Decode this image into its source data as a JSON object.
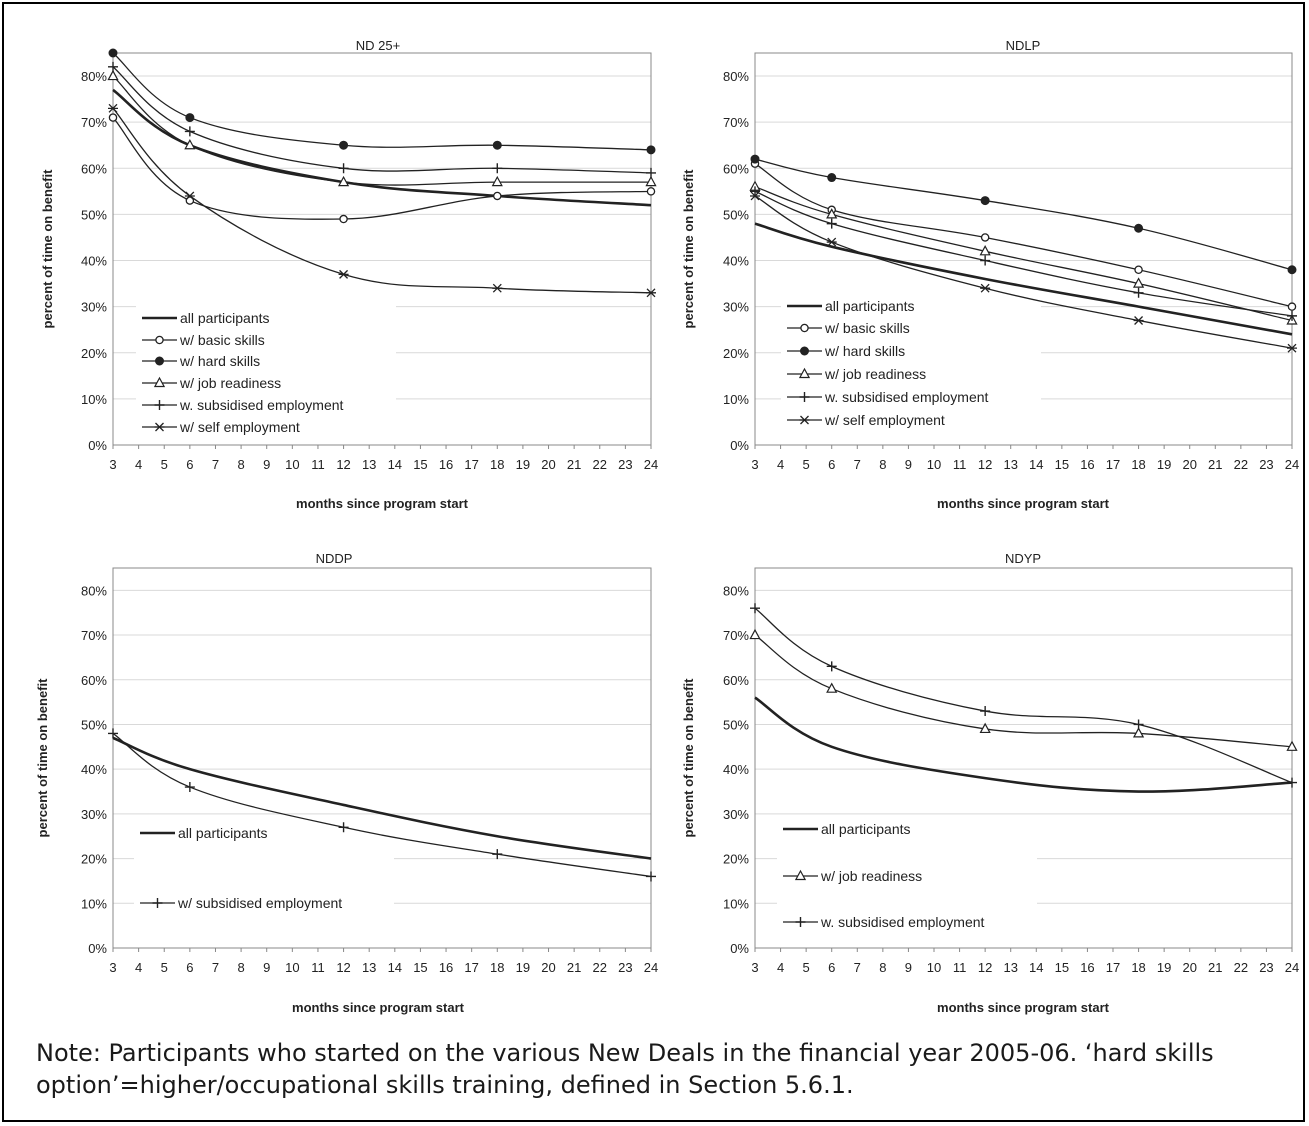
{
  "note": "Note: Participants who started on the various New Deals in the financial year 2005-06. ‘hard skills option’=higher/occupational skills training, defined in Section 5.6.1.",
  "chart_data": [
    {
      "type": "line",
      "title": "ND 25+",
      "xlabel": "months since program start",
      "ylabel": "percent of time on benefit",
      "x_ticks": [
        "3",
        "4",
        "5",
        "6",
        "7",
        "8",
        "9",
        "10",
        "11",
        "12",
        "13",
        "14",
        "15",
        "16",
        "17",
        "18",
        "19",
        "20",
        "21",
        "22",
        "23",
        "24"
      ],
      "y_ticks": [
        "0%",
        "10%",
        "20%",
        "30%",
        "40%",
        "50%",
        "60%",
        "70%",
        "80%"
      ],
      "xlim": [
        3,
        24
      ],
      "ylim": [
        0,
        85
      ],
      "grid": true,
      "legend": "bottom-left",
      "x": [
        3,
        6,
        12,
        18,
        24
      ],
      "series": [
        {
          "name": "all participants",
          "marker": "none",
          "values": [
            77,
            65,
            57,
            54,
            52
          ]
        },
        {
          "name": "w/ basic skills",
          "marker": "circle-open",
          "values": [
            71,
            53,
            49,
            54,
            55
          ]
        },
        {
          "name": "w/ hard skills",
          "marker": "circle-filled",
          "values": [
            85,
            71,
            65,
            65,
            64
          ]
        },
        {
          "name": "w/ job readiness",
          "marker": "triangle",
          "values": [
            80,
            65,
            57,
            57,
            57
          ]
        },
        {
          "name": "w. subsidised employment",
          "marker": "plus",
          "values": [
            82,
            68,
            60,
            60,
            59
          ]
        },
        {
          "name": "w/ self employment",
          "marker": "star",
          "values": [
            73,
            54,
            37,
            34,
            33
          ]
        }
      ]
    },
    {
      "type": "line",
      "title": "NDLP",
      "xlabel": "months since program start",
      "ylabel": "percent of time on benefit",
      "x_ticks": [
        "3",
        "4",
        "5",
        "6",
        "7",
        "8",
        "9",
        "10",
        "11",
        "12",
        "13",
        "14",
        "15",
        "16",
        "17",
        "18",
        "19",
        "20",
        "21",
        "22",
        "23",
        "24"
      ],
      "y_ticks": [
        "0%",
        "10%",
        "20%",
        "30%",
        "40%",
        "50%",
        "60%",
        "70%",
        "80%"
      ],
      "xlim": [
        3,
        24
      ],
      "ylim": [
        0,
        85
      ],
      "grid": true,
      "legend": "bottom-left",
      "x": [
        3,
        6,
        12,
        18,
        24
      ],
      "series": [
        {
          "name": "all participants",
          "marker": "none",
          "values": [
            48,
            43,
            36,
            30,
            24
          ]
        },
        {
          "name": "w/ basic skills",
          "marker": "circle-open",
          "values": [
            61,
            51,
            45,
            38,
            30
          ]
        },
        {
          "name": "w/ hard skills",
          "marker": "circle-filled",
          "values": [
            62,
            58,
            53,
            47,
            38
          ]
        },
        {
          "name": "w/ job readiness",
          "marker": "triangle",
          "values": [
            56,
            50,
            42,
            35,
            27
          ]
        },
        {
          "name": "w. subsidised employment",
          "marker": "plus",
          "values": [
            55,
            48,
            40,
            33,
            28
          ]
        },
        {
          "name": "w/ self employment",
          "marker": "star",
          "values": [
            54,
            44,
            34,
            27,
            21
          ]
        }
      ]
    },
    {
      "type": "line",
      "title": "NDDP",
      "xlabel": "months since program start",
      "ylabel": "percent of time on benefit",
      "x_ticks": [
        "3",
        "4",
        "5",
        "6",
        "7",
        "8",
        "9",
        "10",
        "11",
        "12",
        "13",
        "14",
        "15",
        "16",
        "17",
        "18",
        "19",
        "20",
        "21",
        "22",
        "23",
        "24"
      ],
      "y_ticks": [
        "0%",
        "10%",
        "20%",
        "30%",
        "40%",
        "50%",
        "60%",
        "70%",
        "80%"
      ],
      "xlim": [
        3,
        24
      ],
      "ylim": [
        0,
        85
      ],
      "grid": true,
      "legend": "left",
      "x": [
        3,
        6,
        12,
        18,
        24
      ],
      "series": [
        {
          "name": "all participants",
          "marker": "none",
          "values": [
            47,
            40,
            32,
            25,
            20
          ]
        },
        {
          "name": "w/ subsidised employment",
          "marker": "plus",
          "values": [
            48,
            36,
            27,
            21,
            16
          ]
        }
      ]
    },
    {
      "type": "line",
      "title": "NDYP",
      "xlabel": "months since program start",
      "ylabel": "percent of time on benefit",
      "x_ticks": [
        "3",
        "4",
        "5",
        "6",
        "7",
        "8",
        "9",
        "10",
        "11",
        "12",
        "13",
        "14",
        "15",
        "16",
        "17",
        "18",
        "19",
        "20",
        "21",
        "22",
        "23",
        "24"
      ],
      "y_ticks": [
        "0%",
        "10%",
        "20%",
        "30%",
        "40%",
        "50%",
        "60%",
        "70%",
        "80%"
      ],
      "xlim": [
        3,
        24
      ],
      "ylim": [
        0,
        85
      ],
      "grid": true,
      "legend": "left",
      "x": [
        3,
        6,
        12,
        18,
        24
      ],
      "series": [
        {
          "name": "all participants",
          "marker": "none",
          "values": [
            56,
            45,
            38,
            35,
            37
          ]
        },
        {
          "name": "w/ job readiness",
          "marker": "triangle",
          "values": [
            70,
            58,
            49,
            48,
            45
          ]
        },
        {
          "name": "w. subsidised employment",
          "marker": "plus",
          "values": [
            76,
            63,
            53,
            50,
            37
          ]
        }
      ]
    }
  ]
}
